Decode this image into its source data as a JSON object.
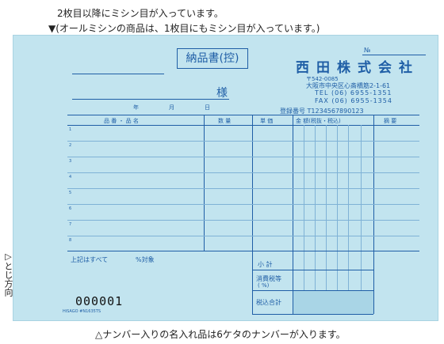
{
  "notes": {
    "top1": "2枚目以降にミシン目が入っています。",
    "top2": "▼(オールミシンの商品は、1枚目にもミシン目が入っています。)",
    "side": "▷とじ方向",
    "bottom": "△ナンバー入りの名入れ品は6ケタのナンバーが入ります。"
  },
  "form": {
    "title": "納品書(控)",
    "no_label": "№",
    "recipient_suffix": "様",
    "date_labels": [
      "年",
      "月",
      "日"
    ],
    "company": "西田株式会社",
    "postal": "〒542-0085",
    "address": "大阪市中央区心斎橋筋2-1-61",
    "tel": "TEL (06) 6955-1351",
    "fax": "FAX (06) 6955-1354",
    "registration": "登録番号 T1234567890123",
    "columns": {
      "item": "品 番 ・ 品 名",
      "qty": "数 量",
      "unit": "単 価",
      "amount": "金 額(税抜・税込)",
      "remarks": "摘 要"
    },
    "row_numbers": [
      "1",
      "2",
      "3",
      "4",
      "5",
      "6",
      "7",
      "8",
      "9"
    ],
    "tax_note": "上記はすべて",
    "tax_target": "%対象",
    "subtotal": "小 計",
    "tax": "消費税等",
    "tax_percent": "( %)",
    "total": "税込合計",
    "serial": "000001",
    "product_code": "HiSAGO #N1635TS"
  }
}
